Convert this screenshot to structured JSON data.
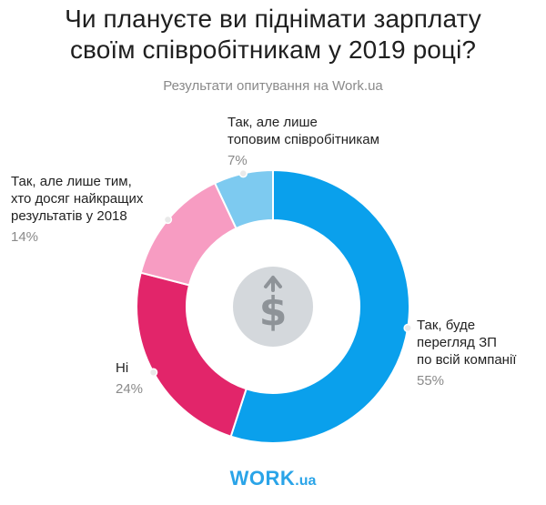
{
  "title_line1": "Чи плануєте ви піднімати зарплату",
  "title_line2": "своїм співробітникам у 2019 році?",
  "subtitle": "Результати опитування на Work.ua",
  "logo": {
    "main": "WORK",
    "suffix": ".ua"
  },
  "center_icon": "dollar-up-arrow-icon",
  "chart_data": {
    "type": "pie",
    "donut": true,
    "start_angle_deg": 0,
    "direction": "clockwise",
    "slices": [
      {
        "label_lines": [
          "Так, буде",
          "перегляд ЗП",
          "по всій компанії"
        ],
        "value": 55,
        "pct_label": "55%",
        "color": "#0aa0ec"
      },
      {
        "label_lines": [
          "Ні"
        ],
        "value": 24,
        "pct_label": "24%",
        "color": "#e2256a"
      },
      {
        "label_lines": [
          "Так, але лише тим,",
          "хто досяг найкращих",
          "результатів у 2018"
        ],
        "value": 14,
        "pct_label": "14%",
        "color": "#f79cc2"
      },
      {
        "label_lines": [
          "Так, але лише",
          "топовим співробітникам"
        ],
        "value": 7,
        "pct_label": "7%",
        "color": "#7dcaf0"
      }
    ]
  }
}
